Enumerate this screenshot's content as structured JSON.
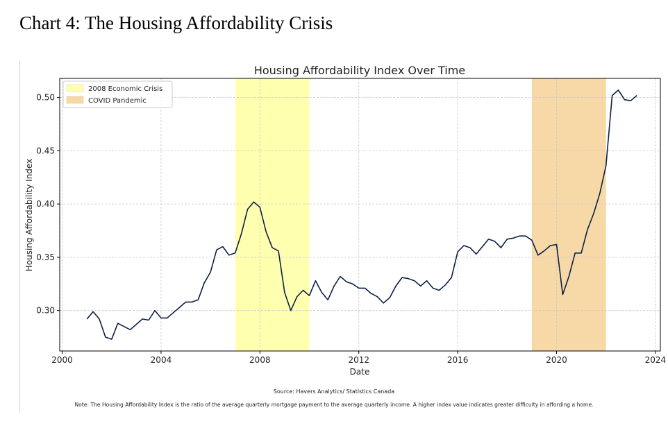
{
  "page": {
    "heading": "Chart 4: The Housing Affordability Crisis",
    "source": "Source: Havers Analytics/ Statistics Canada",
    "note": "Note: The Housing Affordability Index is the ratio of the average quarterly mortgage payment to the average quarterly income. A higher index value indicates greater difficulty in affording a home."
  },
  "colors": {
    "line": "#0b1f44",
    "crisis_band": "#ffffb0",
    "covid_band": "#f7d9a7",
    "grid": "#c8c8c8"
  },
  "chart_data": {
    "type": "line",
    "title": "Housing Affordability Index Over Time",
    "xlabel": "Date",
    "ylabel": "Housing Affordability Index",
    "xlim": [
      1999.9,
      2024.2
    ],
    "ylim": [
      0.262,
      0.518
    ],
    "x_ticks": [
      2000,
      2004,
      2008,
      2012,
      2016,
      2020,
      2024
    ],
    "y_ticks": [
      0.3,
      0.35,
      0.4,
      0.45,
      0.5
    ],
    "x_tick_labels": [
      "2000",
      "2004",
      "2008",
      "2012",
      "2016",
      "2020",
      "2024"
    ],
    "y_tick_labels": [
      "0.30",
      "0.35",
      "0.40",
      "0.45",
      "0.50"
    ],
    "grid": true,
    "legend_position": "top-left",
    "shaded_regions": [
      {
        "label": "2008 Economic Crisis",
        "start": 2007.0,
        "end": 2010.0,
        "color": "#ffffb0"
      },
      {
        "label": "COVID Pandemic",
        "start": 2019.0,
        "end": 2022.0,
        "color": "#f7d9a7"
      }
    ],
    "series": [
      {
        "x": [
          2001.0,
          2001.25,
          2001.5,
          2001.75,
          2002.0,
          2002.25,
          2002.5,
          2002.75,
          2003.0,
          2003.25,
          2003.5,
          2003.75,
          2004.0,
          2004.25,
          2004.5,
          2004.75,
          2005.0,
          2005.25,
          2005.5,
          2005.75,
          2006.0,
          2006.25,
          2006.5,
          2006.75,
          2007.0,
          2007.25,
          2007.5,
          2007.75,
          2008.0,
          2008.25,
          2008.5,
          2008.75,
          2009.0,
          2009.25,
          2009.5,
          2009.75,
          2010.0,
          2010.25,
          2010.5,
          2010.75,
          2011.0,
          2011.25,
          2011.5,
          2011.75,
          2012.0,
          2012.25,
          2012.5,
          2012.75,
          2013.0,
          2013.25,
          2013.5,
          2013.75,
          2014.0,
          2014.25,
          2014.5,
          2014.75,
          2015.0,
          2015.25,
          2015.5,
          2015.75,
          2016.0,
          2016.25,
          2016.5,
          2016.75,
          2017.0,
          2017.25,
          2017.5,
          2017.75,
          2018.0,
          2018.25,
          2018.5,
          2018.75,
          2019.0,
          2019.25,
          2019.5,
          2019.75,
          2020.0,
          2020.25,
          2020.5,
          2020.75,
          2021.0,
          2021.25,
          2021.5,
          2021.75,
          2022.0,
          2022.25,
          2022.5,
          2022.75,
          2023.0,
          2023.25
        ],
        "values": [
          0.292,
          0.299,
          0.292,
          0.275,
          0.273,
          0.288,
          0.285,
          0.282,
          0.287,
          0.292,
          0.291,
          0.3,
          0.293,
          0.293,
          0.298,
          0.303,
          0.308,
          0.308,
          0.31,
          0.326,
          0.336,
          0.357,
          0.36,
          0.352,
          0.354,
          0.372,
          0.395,
          0.402,
          0.397,
          0.374,
          0.359,
          0.356,
          0.317,
          0.3,
          0.313,
          0.319,
          0.314,
          0.328,
          0.317,
          0.31,
          0.323,
          0.332,
          0.327,
          0.325,
          0.321,
          0.321,
          0.316,
          0.313,
          0.307,
          0.312,
          0.323,
          0.331,
          0.33,
          0.328,
          0.323,
          0.328,
          0.321,
          0.319,
          0.324,
          0.331,
          0.355,
          0.361,
          0.359,
          0.353,
          0.36,
          0.367,
          0.365,
          0.359,
          0.367,
          0.368,
          0.37,
          0.37,
          0.366,
          0.352,
          0.356,
          0.361,
          0.362,
          0.315,
          0.332,
          0.354,
          0.354,
          0.376,
          0.391,
          0.41,
          0.436,
          0.502,
          0.507,
          0.498,
          0.497,
          0.502
        ]
      }
    ]
  }
}
